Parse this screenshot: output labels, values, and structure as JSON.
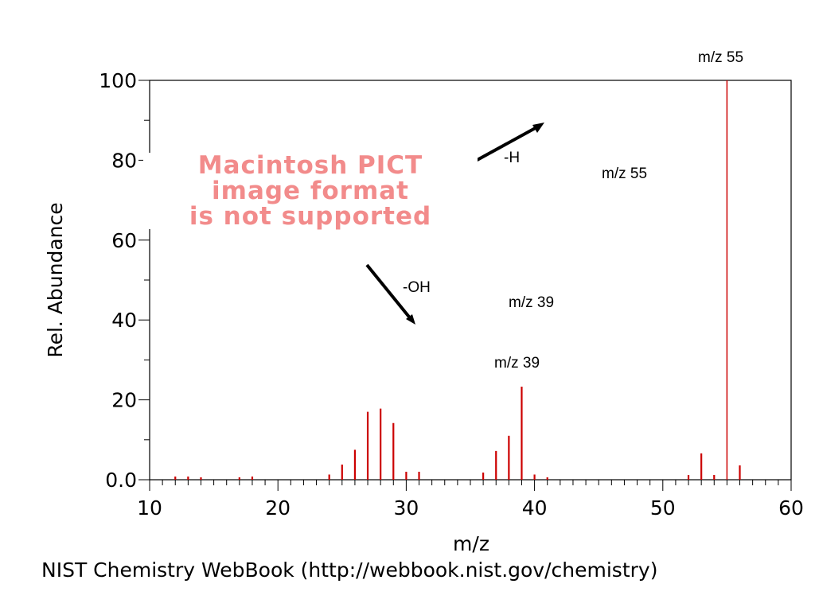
{
  "chart_data": {
    "type": "bar",
    "xlabel": "m/z",
    "ylabel": "Rel. Abundance",
    "xlim": [
      10,
      60
    ],
    "ylim": [
      0,
      100
    ],
    "x_ticks": [
      "10",
      "20",
      "30",
      "40",
      "50",
      "60"
    ],
    "y_ticks": [
      "0.0",
      "20",
      "40",
      "60",
      "80",
      "100"
    ],
    "grid": false,
    "bar_color": "#cc0000",
    "peaks": [
      {
        "mz": 12,
        "intensity": 0.8
      },
      {
        "mz": 13,
        "intensity": 0.8
      },
      {
        "mz": 14,
        "intensity": 0.6
      },
      {
        "mz": 17,
        "intensity": 0.6
      },
      {
        "mz": 18,
        "intensity": 0.8
      },
      {
        "mz": 24,
        "intensity": 1.3
      },
      {
        "mz": 25,
        "intensity": 3.8
      },
      {
        "mz": 26,
        "intensity": 7.5
      },
      {
        "mz": 27,
        "intensity": 17.0
      },
      {
        "mz": 28,
        "intensity": 17.8
      },
      {
        "mz": 29,
        "intensity": 14.2
      },
      {
        "mz": 30,
        "intensity": 2.0
      },
      {
        "mz": 31,
        "intensity": 2.0
      },
      {
        "mz": 36,
        "intensity": 1.8
      },
      {
        "mz": 37,
        "intensity": 7.2
      },
      {
        "mz": 38,
        "intensity": 11.0
      },
      {
        "mz": 39,
        "intensity": 23.3
      },
      {
        "mz": 40,
        "intensity": 1.3
      },
      {
        "mz": 41,
        "intensity": 0.6
      },
      {
        "mz": 52,
        "intensity": 1.2
      },
      {
        "mz": 53,
        "intensity": 6.6
      },
      {
        "mz": 54,
        "intensity": 1.2
      },
      {
        "mz": 55,
        "intensity": 100.0
      },
      {
        "mz": 56,
        "intensity": 3.6
      }
    ]
  },
  "annotations": {
    "mz55_top": "m/z 55",
    "mz55_mid": "m/z 55",
    "mz39_upper": "m/z 39",
    "mz39_lower": "m/z 39",
    "minus_h": "-H",
    "minus_oh": "-OH"
  },
  "placeholder_image": {
    "lines": [
      "Macintosh PICT",
      "image format",
      "is not supported"
    ],
    "color": "#f28b8b"
  },
  "footer": "NIST Chemistry WebBook (http://webbook.nist.gov/chemistry)"
}
